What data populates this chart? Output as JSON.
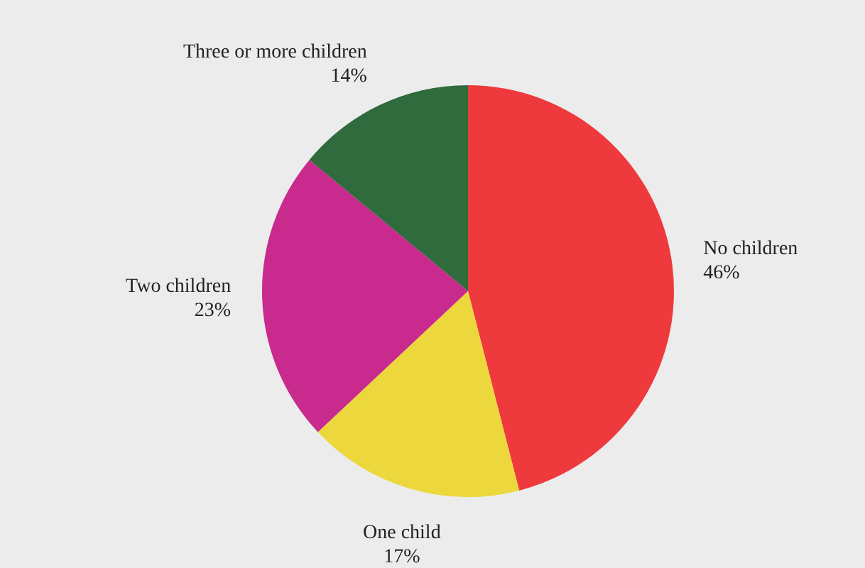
{
  "chart_data": {
    "type": "pie",
    "categories": [
      "No children",
      "One child",
      "Two children",
      "Three or more children"
    ],
    "values": [
      46,
      17,
      23,
      14
    ],
    "colors": [
      "#ee3a3c",
      "#ecd83c",
      "#c92a8e",
      "#2f6b3c"
    ],
    "value_labels": [
      "46%",
      "17%",
      "23%",
      "14%"
    ],
    "legend": false
  }
}
